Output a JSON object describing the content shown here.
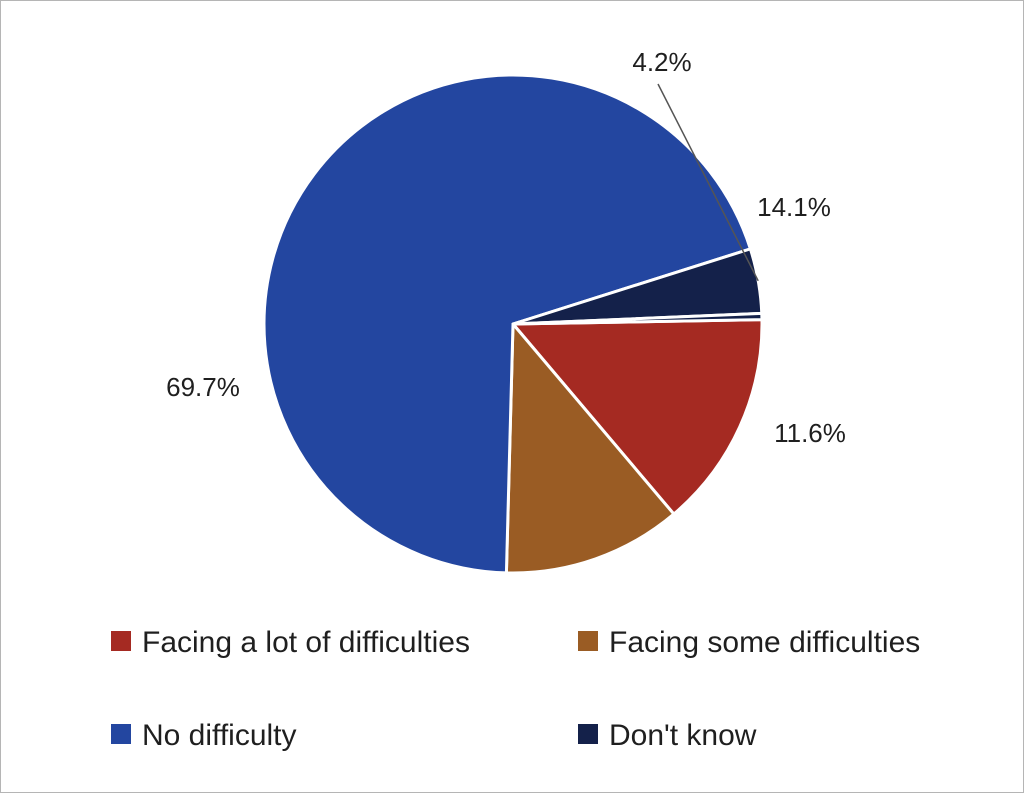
{
  "chart_data": {
    "type": "pie",
    "title": "",
    "series": [
      {
        "values": [
          14.1,
          11.6,
          69.7,
          4.2,
          0.4
        ],
        "labels": [
          "14.1%",
          "11.6%",
          "69.7%",
          "4.2%",
          ""
        ]
      }
    ],
    "categories": [
      "Facing a lot of difficulties",
      "Facing some difficulties",
      "No difficulty",
      "Don't know",
      ""
    ],
    "colors": [
      "#a52a22",
      "#9a5c24",
      "#2346a0",
      "#14214a",
      "#14214a"
    ],
    "legend": {
      "position": "bottom",
      "items": [
        {
          "label": "Facing a lot of difficulties",
          "color": "#a52a22"
        },
        {
          "label": "Facing some difficulties",
          "color": "#9a5c24"
        },
        {
          "label": "No difficulty",
          "color": "#2346a0"
        },
        {
          "label": "Don't know",
          "color": "#14214a"
        }
      ]
    }
  }
}
